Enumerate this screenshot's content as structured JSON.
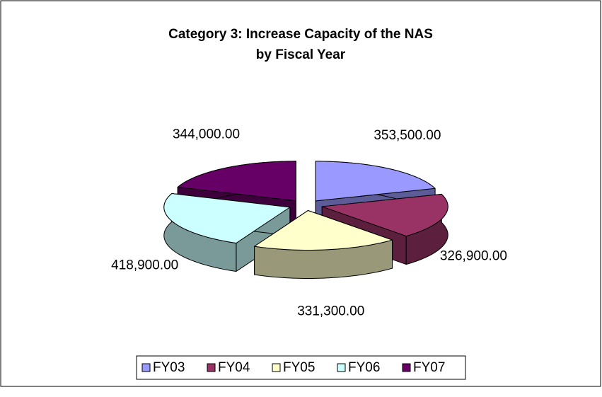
{
  "chart_data": {
    "type": "pie3d",
    "title": [
      "Category 3: Increase Capacity of the NAS",
      "by Fiscal Year"
    ],
    "categories": [
      "FY03",
      "FY04",
      "FY05",
      "FY06",
      "FY07"
    ],
    "values": [
      353500,
      326900,
      331300,
      418900,
      344000
    ],
    "value_labels": [
      "353,500.00",
      "326,900.00",
      "331,300.00",
      "418,900.00",
      "344,000.00"
    ],
    "colors": [
      "#9999ff",
      "#993366",
      "#ffffcc",
      "#ccffff",
      "#660066"
    ],
    "legend": "bottom"
  }
}
